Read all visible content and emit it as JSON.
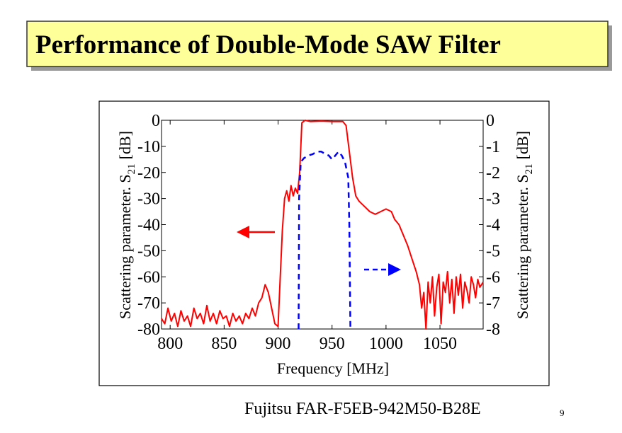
{
  "slide": {
    "title": "Performance of Double-Mode SAW Filter",
    "caption": "Fujitsu FAR-F5EB-942M50-B28E",
    "page_number": 9
  },
  "chart_data": {
    "type": "line",
    "x_label": "Frequency [MHz]",
    "y_label": {
      "text": "Scattering parameter. S",
      "sub": "21",
      "unit": "[dB]"
    },
    "y2_label": {
      "text": "Scattering parameter. S",
      "sub": "21",
      "unit": "[dB]"
    },
    "xlim": [
      792,
      1090
    ],
    "xticks": [
      800,
      850,
      900,
      950,
      1000,
      1050
    ],
    "ylim": [
      -80,
      0
    ],
    "yticks": [
      0,
      -10,
      -20,
      -30,
      -40,
      -50,
      -60,
      -70,
      -80
    ],
    "y2lim": [
      -8,
      0
    ],
    "y2ticks": [
      0,
      -1,
      -2,
      -3,
      -4,
      -5,
      -6,
      -7,
      -8
    ],
    "series": [
      {
        "color": "#ff0000",
        "style": "solid",
        "axis": "y",
        "x": [
          792,
          795,
          798,
          801,
          804,
          807,
          810,
          813,
          816,
          819,
          822,
          825,
          828,
          831,
          834,
          837,
          840,
          843,
          846,
          849,
          852,
          855,
          858,
          861,
          864,
          867,
          870,
          873,
          876,
          879,
          882,
          885,
          888,
          891,
          894,
          897,
          900,
          902,
          904,
          906,
          908,
          910,
          912,
          914,
          916,
          918,
          920,
          922,
          925,
          930,
          940,
          950,
          960,
          963,
          966,
          969,
          972,
          975,
          980,
          985,
          990,
          995,
          1000,
          1005,
          1008,
          1012,
          1016,
          1020,
          1024,
          1028,
          1031,
          1033,
          1035,
          1037,
          1039,
          1041,
          1043,
          1045,
          1047,
          1049,
          1051,
          1053,
          1055,
          1057,
          1059,
          1061,
          1063,
          1065,
          1067,
          1069,
          1071,
          1073,
          1075,
          1077,
          1079,
          1081,
          1083,
          1085,
          1087,
          1090
        ],
        "values": [
          -76,
          -78,
          -72,
          -77,
          -74,
          -79,
          -73,
          -77,
          -75,
          -79,
          -72,
          -76,
          -74,
          -78,
          -71,
          -77,
          -74,
          -78,
          -73,
          -76,
          -75,
          -79,
          -74,
          -77,
          -75,
          -78,
          -74,
          -76,
          -72,
          -75,
          -70,
          -68,
          -63,
          -66,
          -72,
          -78,
          -79,
          -60,
          -42,
          -30,
          -27,
          -31,
          -25,
          -29,
          -26,
          -28,
          -20,
          -1,
          0,
          -0.5,
          -0.3,
          -0.5,
          -0.5,
          -2,
          -12,
          -22,
          -29,
          -31,
          -33,
          -35,
          -36,
          -35,
          -34,
          -35,
          -38,
          -40,
          -44,
          -48,
          -53,
          -58,
          -63,
          -72,
          -66,
          -80,
          -62,
          -70,
          -60,
          -75,
          -64,
          -59,
          -78,
          -62,
          -66,
          -58,
          -70,
          -61,
          -74,
          -60,
          -67,
          -59,
          -72,
          -62,
          -65,
          -70,
          -60,
          -63,
          -68,
          -61,
          -64,
          -62
        ]
      },
      {
        "color": "#0000ff",
        "style": "dashed",
        "axis": "y2",
        "x": [
          919,
          919.5,
          921,
          924,
          928,
          932,
          936,
          940,
          944,
          947,
          950,
          953,
          956,
          959,
          962,
          965,
          966,
          967
        ],
        "values": [
          -8,
          -3,
          -1.6,
          -1.45,
          -1.35,
          -1.3,
          -1.2,
          -1.2,
          -1.3,
          -1.35,
          -1.5,
          -1.35,
          -1.2,
          -1.35,
          -1.6,
          -2.2,
          -4,
          -8
        ]
      }
    ]
  }
}
